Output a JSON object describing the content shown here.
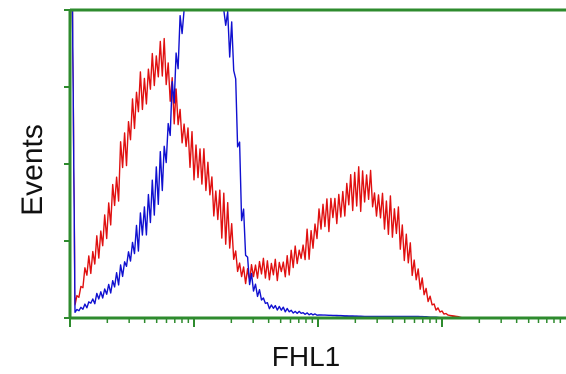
{
  "chart_data": {
    "type": "line",
    "title": "",
    "xlabel": "FHL1",
    "ylabel": "Events",
    "xscale": "log",
    "grid": false,
    "legend": "none",
    "axis_color": "#2e8b2e",
    "xlim": [
      0,
      1
    ],
    "ylim": [
      0,
      1
    ],
    "series": [
      {
        "color": "#e01010",
        "x": [
          0.005,
          0.01,
          0.02,
          0.03,
          0.05,
          0.07,
          0.09,
          0.11,
          0.13,
          0.15,
          0.17,
          0.19,
          0.2,
          0.21,
          0.22,
          0.23,
          0.24,
          0.26,
          0.28,
          0.3,
          0.32,
          0.34,
          0.36,
          0.38,
          0.4,
          0.42,
          0.44,
          0.46,
          0.48,
          0.5,
          0.52,
          0.54,
          0.56,
          0.58,
          0.6,
          0.62,
          0.64,
          0.66,
          0.68,
          0.7,
          0.72,
          0.74,
          0.76,
          0.78,
          0.8,
          1.0
        ],
        "y": [
          1.0,
          0.05,
          0.08,
          0.14,
          0.2,
          0.3,
          0.4,
          0.55,
          0.68,
          0.74,
          0.8,
          0.83,
          0.78,
          0.7,
          0.65,
          0.6,
          0.56,
          0.5,
          0.45,
          0.35,
          0.3,
          0.16,
          0.13,
          0.16,
          0.15,
          0.16,
          0.17,
          0.2,
          0.24,
          0.3,
          0.35,
          0.37,
          0.39,
          0.41,
          0.42,
          0.36,
          0.33,
          0.3,
          0.22,
          0.14,
          0.07,
          0.03,
          0.01,
          0.005,
          0.0,
          0.0
        ]
      },
      {
        "color": "#1010d0",
        "x": [
          0.005,
          0.01,
          0.02,
          0.04,
          0.06,
          0.08,
          0.1,
          0.12,
          0.14,
          0.16,
          0.18,
          0.2,
          0.21,
          0.22,
          0.23,
          0.24,
          0.25,
          0.27,
          0.29,
          0.31,
          0.33,
          0.34,
          0.35,
          0.36,
          0.38,
          0.4,
          0.45,
          0.5,
          0.6,
          0.7,
          0.8,
          1.0
        ],
        "y": [
          1.0,
          0.02,
          0.03,
          0.05,
          0.07,
          0.1,
          0.14,
          0.2,
          0.27,
          0.35,
          0.45,
          0.6,
          0.75,
          0.9,
          1.0,
          1.0,
          1.0,
          1.0,
          1.0,
          1.0,
          0.88,
          0.55,
          0.3,
          0.15,
          0.08,
          0.04,
          0.02,
          0.01,
          0.005,
          0.005,
          0.0,
          0.0
        ]
      }
    ]
  }
}
